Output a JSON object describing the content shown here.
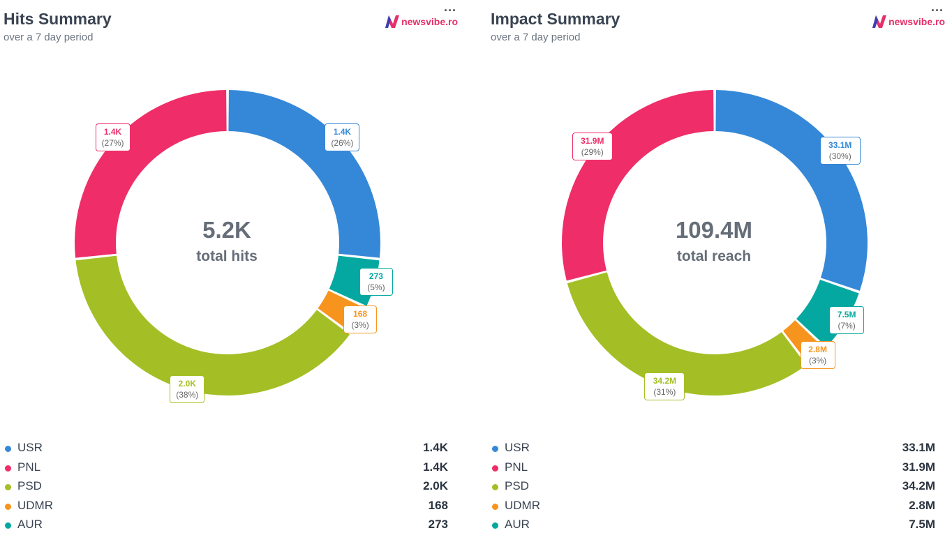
{
  "colors": {
    "USR": "#3588d8",
    "PNL": "#ef2d68",
    "PSD": "#a4bf25",
    "UDMR": "#f7941d",
    "AUR": "#05a8a0"
  },
  "logo_text": "newsvibe.ro",
  "more_icon": "...",
  "panels": [
    {
      "title": "Hits Summary",
      "subtitle": "over a 7 day period",
      "center_value": "5.2K",
      "center_label": "total hits",
      "legend": [
        {
          "name": "USR",
          "value": "1.4K"
        },
        {
          "name": "PNL",
          "value": "1.4K"
        },
        {
          "name": "PSD",
          "value": "2.0K"
        },
        {
          "name": "UDMR",
          "value": "168"
        },
        {
          "name": "AUR",
          "value": "273"
        }
      ]
    },
    {
      "title": "Impact Summary",
      "subtitle": "over a 7 day period",
      "center_value": "109.4M",
      "center_label": "total reach",
      "legend": [
        {
          "name": "USR",
          "value": "33.1M"
        },
        {
          "name": "PNL",
          "value": "31.9M"
        },
        {
          "name": "PSD",
          "value": "34.2M"
        },
        {
          "name": "UDMR",
          "value": "2.8M"
        },
        {
          "name": "AUR",
          "value": "7.5M"
        }
      ]
    }
  ],
  "chart_data": [
    {
      "type": "pie",
      "title": "Hits Summary",
      "subtitle": "over a 7 day period",
      "center": "5.2K total hits",
      "slices": [
        {
          "name": "USR",
          "value": 1400,
          "label": "1.4K",
          "percent": "(26%)"
        },
        {
          "name": "AUR",
          "value": 273,
          "label": "273",
          "percent": "(5%)"
        },
        {
          "name": "UDMR",
          "value": 168,
          "label": "168",
          "percent": "(3%)"
        },
        {
          "name": "PSD",
          "value": 2000,
          "label": "2.0K",
          "percent": "(38%)"
        },
        {
          "name": "PNL",
          "value": 1400,
          "label": "1.4K",
          "percent": "(27%)"
        }
      ]
    },
    {
      "type": "pie",
      "title": "Impact Summary",
      "subtitle": "over a 7 day period",
      "center": "109.4M total reach",
      "slices": [
        {
          "name": "USR",
          "value": 33.1,
          "label": "33.1M",
          "percent": "(30%)"
        },
        {
          "name": "AUR",
          "value": 7.5,
          "label": "7.5M",
          "percent": "(7%)"
        },
        {
          "name": "UDMR",
          "value": 2.8,
          "label": "2.8M",
          "percent": "(3%)"
        },
        {
          "name": "PSD",
          "value": 34.2,
          "label": "34.2M",
          "percent": "(31%)"
        },
        {
          "name": "PNL",
          "value": 31.9,
          "label": "31.9M",
          "percent": "(29%)"
        }
      ]
    }
  ]
}
